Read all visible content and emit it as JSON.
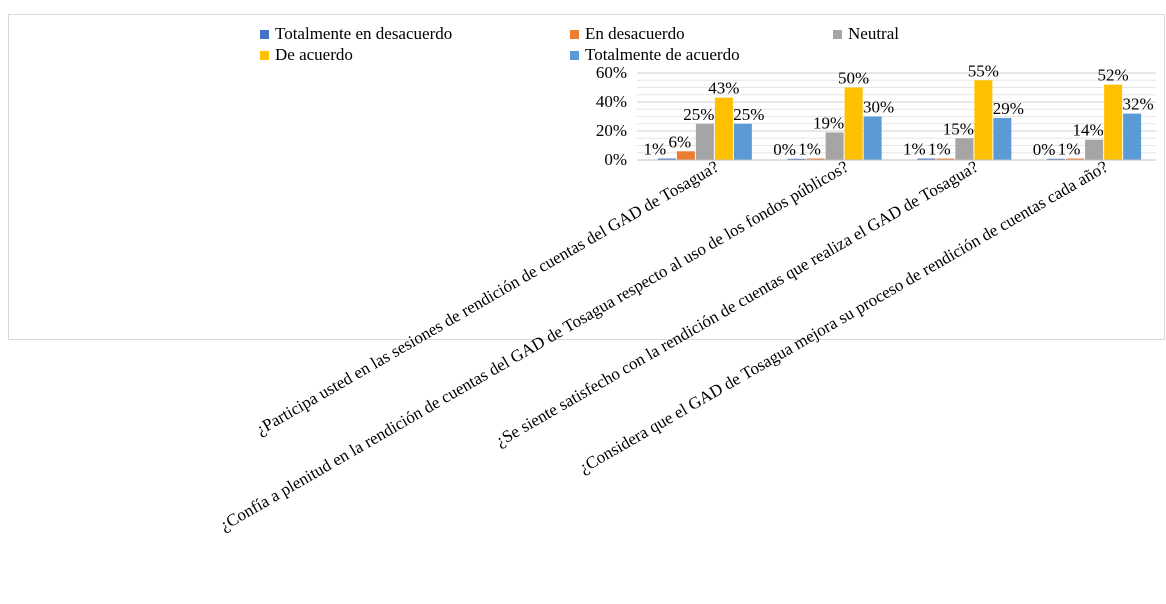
{
  "chart_data": {
    "type": "bar",
    "categories": [
      "¿Participa usted en las sesiones de rendición de cuentas del GAD de Tosagua?",
      "¿Confía a plenitud en la rendición de cuentas del GAD de Tosagua respecto al uso de los fondos públicos?",
      "¿Se siente satisfecho con la rendición de cuentas que realiza el GAD de Tosagua?",
      "¿Considera que el GAD de Tosagua mejora su proceso de rendición de cuentas cada año?"
    ],
    "series": [
      {
        "name": "Totalmente en desacuerdo",
        "color": "#4472C4",
        "values": [
          1,
          0,
          1,
          0
        ],
        "labels": [
          "1%",
          "0%",
          "1%",
          "0%"
        ]
      },
      {
        "name": "En desacuerdo",
        "color": "#ED7D31",
        "values": [
          6,
          1,
          1,
          1
        ],
        "labels": [
          "6%",
          "1%",
          "1%",
          "1%"
        ]
      },
      {
        "name": "Neutral",
        "color": "#A5A5A5",
        "values": [
          25,
          19,
          15,
          14
        ],
        "labels": [
          "25%",
          "19%",
          "15%",
          "14%"
        ]
      },
      {
        "name": "De acuerdo",
        "color": "#FFC000",
        "values": [
          43,
          50,
          55,
          52
        ],
        "labels": [
          "43%",
          "50%",
          "55%",
          "52%"
        ]
      },
      {
        "name": "Totalmente de acuerdo",
        "color": "#5B9BD5",
        "values": [
          25,
          30,
          29,
          32
        ],
        "labels": [
          "25%",
          "30%",
          "29%",
          "32%"
        ]
      }
    ],
    "y_ticks": [
      "0%",
      "20%",
      "40%",
      "60%"
    ],
    "ylim": [
      0,
      60
    ],
    "y_unit": "%",
    "grid": true,
    "legend_position": "top"
  }
}
